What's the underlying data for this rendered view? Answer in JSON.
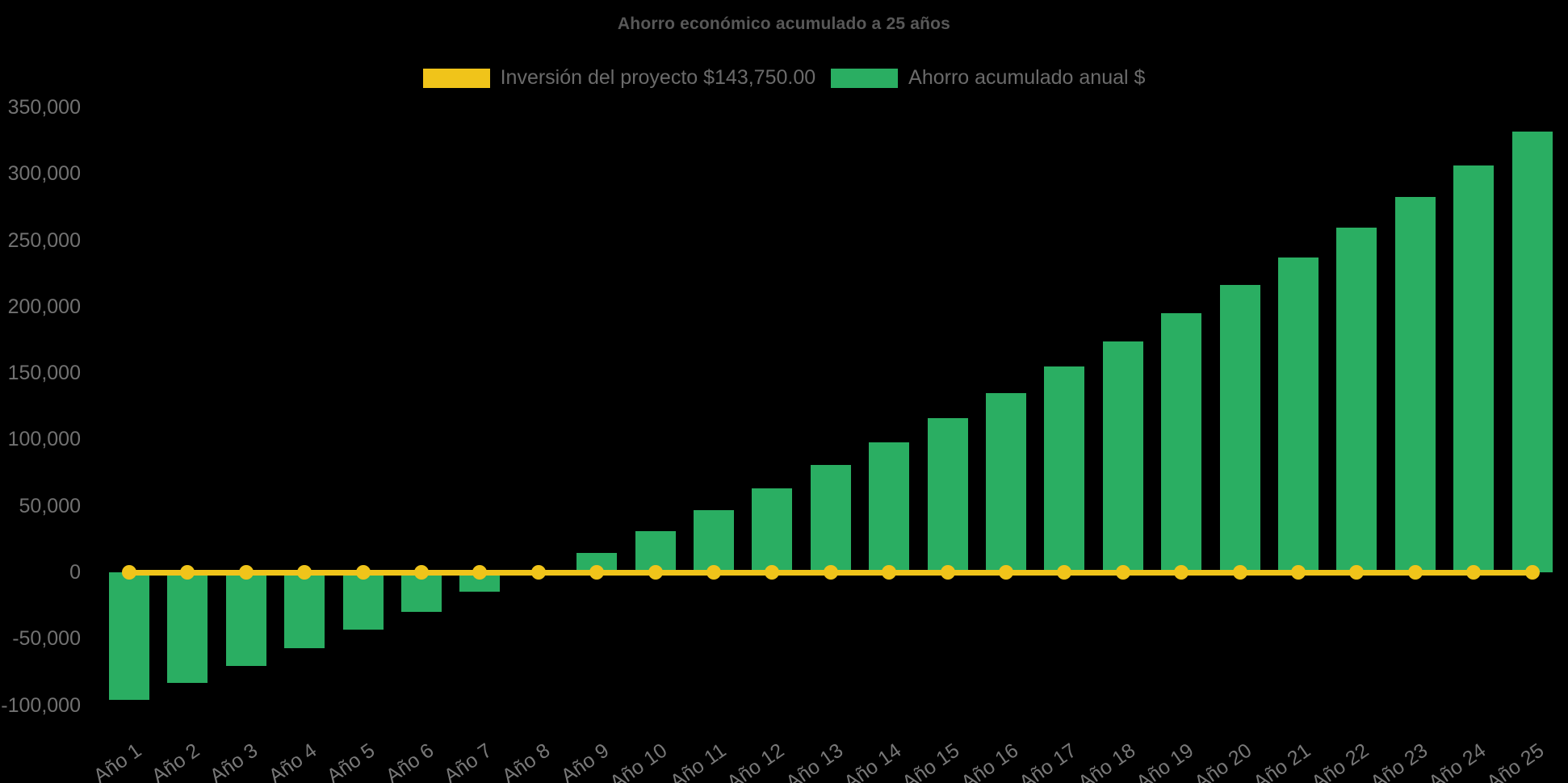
{
  "title": "Ahorro económico acumulado a 25 años",
  "legend": [
    {
      "label": "Inversión del proyecto $143,750.00",
      "color": "#f0c41a"
    },
    {
      "label": "Ahorro acumulado anual $",
      "color": "#2aae62"
    }
  ],
  "colors": {
    "background": "#000000",
    "investment_line": "#f0c41a",
    "savings_bar": "#2aae62",
    "title_text": "#585858",
    "axis_text": "#727272"
  },
  "chart_data": {
    "type": "bar",
    "title": "Ahorro económico acumulado a 25 años",
    "xlabel": "",
    "ylabel": "",
    "grid": false,
    "legend_position": "top",
    "ylim": [
      -100000,
      350000
    ],
    "y_ticks": [
      -100000,
      -50000,
      0,
      50000,
      100000,
      150000,
      200000,
      250000,
      300000,
      350000
    ],
    "categories": [
      "Año 1",
      "Año 2",
      "Año 3",
      "Año 4",
      "Año 5",
      "Año 6",
      "Año 7",
      "Año 8",
      "Año 9",
      "Año 10",
      "Año 11",
      "Año 12",
      "Año 13",
      "Año 14",
      "Año 15",
      "Año 16",
      "Año 17",
      "Año 18",
      "Año 19",
      "Año 20",
      "Año 21",
      "Año 22",
      "Año 23",
      "Año 24",
      "Año 25"
    ],
    "series": [
      {
        "name": "Inversión del proyecto $143,750.00",
        "type": "line",
        "color": "#f0c41a",
        "marker": "circle",
        "values": [
          0,
          0,
          0,
          0,
          0,
          0,
          0,
          0,
          0,
          0,
          0,
          0,
          0,
          0,
          0,
          0,
          0,
          0,
          0,
          0,
          0,
          0,
          0,
          0,
          0
        ]
      },
      {
        "name": "Ahorro acumulado anual $",
        "type": "bar",
        "color": "#2aae62",
        "values": [
          -95900,
          -83500,
          -70600,
          -57400,
          -43300,
          -29600,
          -14500,
          800,
          14700,
          30700,
          46500,
          62900,
          80700,
          97900,
          116100,
          135000,
          155000,
          173900,
          195100,
          216000,
          237000,
          259500,
          282600,
          306100,
          331600
        ]
      }
    ]
  }
}
